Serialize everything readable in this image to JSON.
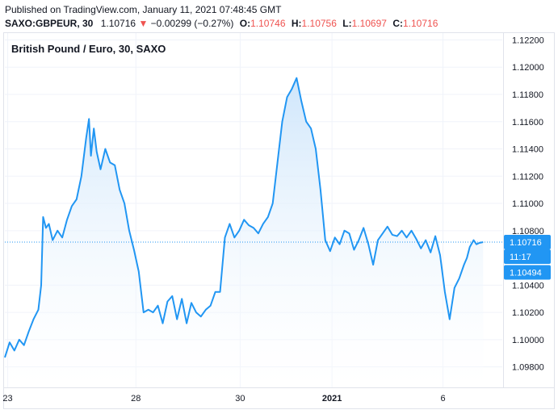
{
  "header": {
    "published": "Published on TradingView.com, January 11, 2021 07:48:45 GMT",
    "symbol": "SAXO:GBPEUR, 30",
    "last": "1.10716",
    "arrow": "▼",
    "change": "−0.00299 (−0.27%)",
    "o_label": "O:",
    "o_val": "1.10746",
    "h_label": "H:",
    "h_val": "1.10756",
    "l_label": "L:",
    "l_val": "1.10697",
    "c_label": "C:",
    "c_val": "1.10716"
  },
  "chart_title": "British Pound / Euro, 30, SAXO",
  "colors": {
    "line": "#2196f3",
    "fill_top": "#cfe6fb",
    "neg": "#ef5350",
    "grid": "#f0f3fa",
    "axis_text": "#131722"
  },
  "chart_data": {
    "type": "area",
    "title": "British Pound / Euro, 30, SAXO",
    "ylim": [
      1.0965,
      1.1225
    ],
    "y_ticks": [
      "1.12200",
      "1.12000",
      "1.11800",
      "1.11600",
      "1.11400",
      "1.11200",
      "1.11000",
      "1.10800",
      "1.10400",
      "1.10200",
      "1.10000",
      "1.09800"
    ],
    "y_tick_values": [
      1.122,
      1.12,
      1.118,
      1.116,
      1.114,
      1.112,
      1.11,
      1.108,
      1.104,
      1.102,
      1.1,
      1.098
    ],
    "x_ticks": [
      {
        "label": "23",
        "x": 0.3,
        "bold": false
      },
      {
        "label": "28",
        "x": 13.7,
        "bold": false
      },
      {
        "label": "30",
        "x": 24.6,
        "bold": false
      },
      {
        "label": "2021",
        "x": 34.2,
        "bold": true
      },
      {
        "label": "6",
        "x": 45.8,
        "bold": false
      }
    ],
    "last_price_label": "1.10716",
    "last_price": 1.10716,
    "countdown_label": "11:17",
    "alt_price_label": "1.10494",
    "alt_price": 1.10494,
    "series": [
      {
        "x": [
          0.0,
          0.5,
          1.0,
          1.5,
          2.0,
          2.5,
          3.0,
          3.5,
          3.8,
          4.0,
          4.3,
          4.6,
          5.0,
          5.5,
          6.0,
          6.5,
          7.0,
          7.5,
          8.0,
          8.5,
          8.8,
          9.0,
          9.3,
          9.6,
          10.0,
          10.5,
          11.0,
          11.5,
          12.0,
          12.5,
          13.0,
          13.5,
          14.0,
          14.5,
          15.0,
          15.5,
          16.0,
          16.5,
          17.0,
          17.5,
          18.0,
          18.5,
          19.0,
          19.5,
          20.0,
          20.5,
          21.0,
          21.5,
          22.0,
          22.5,
          23.0,
          23.5,
          24.0,
          24.5,
          25.0,
          25.5,
          26.0,
          26.5,
          27.0,
          27.5,
          28.0,
          28.5,
          29.0,
          29.5,
          30.0,
          30.5,
          31.0,
          31.5,
          32.0,
          32.5,
          33.0,
          33.5,
          34.0,
          34.5,
          35.0,
          35.5,
          36.0,
          36.5,
          37.0,
          37.5,
          38.0,
          38.5,
          39.0,
          39.5,
          40.0,
          40.5,
          41.0,
          41.5,
          42.0,
          42.5,
          43.0,
          43.5,
          44.0,
          44.5,
          45.0,
          45.5,
          46.0,
          46.5,
          47.0,
          47.5,
          48.0,
          48.3,
          48.6,
          49.0,
          49.3,
          49.6,
          50.0
        ],
        "y": [
          1.0987,
          1.0998,
          1.0992,
          1.1,
          1.0996,
          1.1006,
          1.1015,
          1.1022,
          1.104,
          1.109,
          1.1082,
          1.1085,
          1.1073,
          1.108,
          1.1075,
          1.1088,
          1.1098,
          1.1103,
          1.112,
          1.1148,
          1.1162,
          1.1135,
          1.1155,
          1.1138,
          1.1125,
          1.114,
          1.113,
          1.1128,
          1.111,
          1.11,
          1.108,
          1.1066,
          1.105,
          1.102,
          1.1022,
          1.102,
          1.1025,
          1.1012,
          1.1028,
          1.1032,
          1.1015,
          1.103,
          1.1012,
          1.1027,
          1.102,
          1.1017,
          1.1022,
          1.1025,
          1.1035,
          1.1035,
          1.1075,
          1.1085,
          1.1075,
          1.108,
          1.1088,
          1.1084,
          1.1082,
          1.1078,
          1.1085,
          1.109,
          1.11,
          1.113,
          1.116,
          1.1178,
          1.1184,
          1.1192,
          1.1175,
          1.116,
          1.1155,
          1.114,
          1.111,
          1.1073,
          1.1065,
          1.1075,
          1.107,
          1.108,
          1.1078,
          1.1066,
          1.1073,
          1.1082,
          1.107,
          1.1055,
          1.1073,
          1.1078,
          1.1083,
          1.1077,
          1.1076,
          1.108,
          1.1075,
          1.108,
          1.1074,
          1.1067,
          1.1073,
          1.1064,
          1.1076,
          1.1062,
          1.1035,
          1.1015,
          1.1038,
          1.1045,
          1.1055,
          1.106,
          1.1068,
          1.1073,
          1.107,
          1.1071,
          1.10716
        ]
      }
    ]
  }
}
